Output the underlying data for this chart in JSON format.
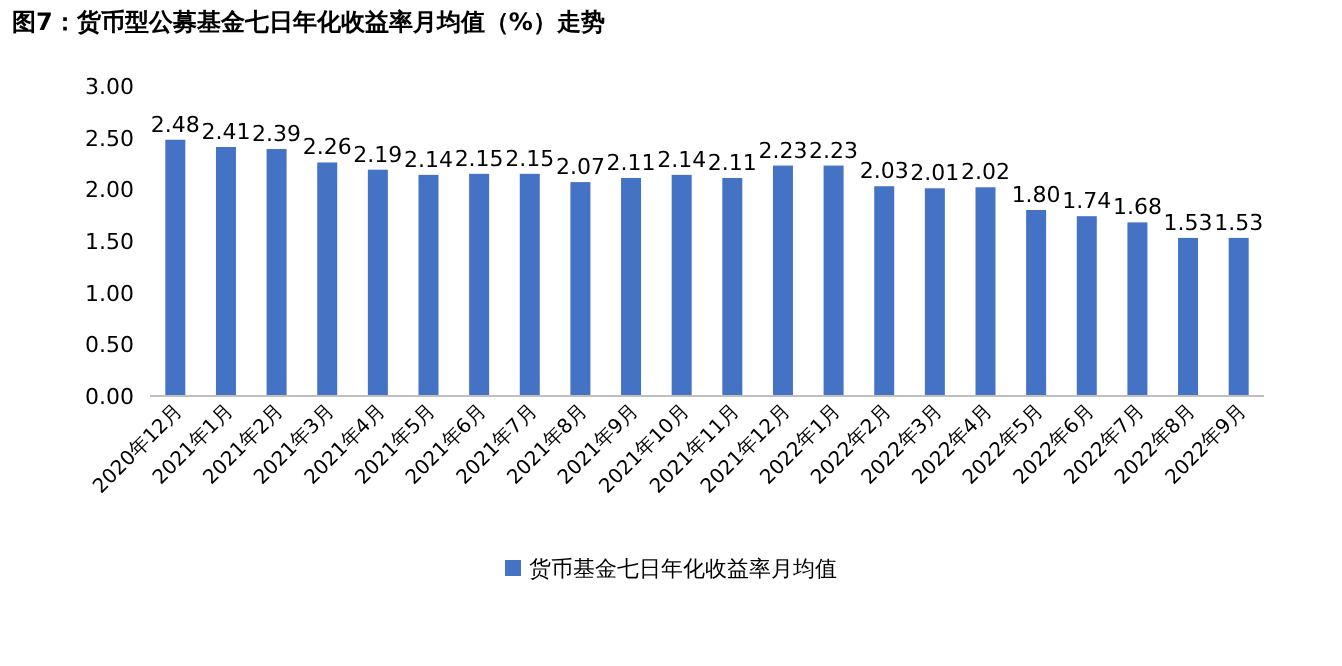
{
  "chart_data": {
    "type": "bar",
    "title": "图7：货币型公募基金七日年化收益率月均值（%）走势",
    "categories": [
      "2020年12月",
      "2021年1月",
      "2021年2月",
      "2021年3月",
      "2021年4月",
      "2021年5月",
      "2021年6月",
      "2021年7月",
      "2021年8月",
      "2021年9月",
      "2021年10月",
      "2021年11月",
      "2021年12月",
      "2022年1月",
      "2022年2月",
      "2022年3月",
      "2022年4月",
      "2022年5月",
      "2022年6月",
      "2022年7月",
      "2022年8月",
      "2022年9月"
    ],
    "series": [
      {
        "name": "货币基金七日年化收益率月均值",
        "color": "#4472c4",
        "values": [
          2.48,
          2.41,
          2.39,
          2.26,
          2.19,
          2.14,
          2.15,
          2.15,
          2.07,
          2.11,
          2.14,
          2.11,
          2.23,
          2.23,
          2.03,
          2.01,
          2.02,
          1.8,
          1.74,
          1.68,
          1.53,
          1.53
        ],
        "value_labels": [
          "2.48",
          "2.41",
          "2.39",
          "2.26",
          "2.19",
          "2.14",
          "2.15",
          "2.15",
          "2.07",
          "2.11",
          "2.14",
          "2.11",
          "2.23",
          "2.23",
          "2.03",
          "2.01",
          "2.02",
          "1.80",
          "1.74",
          "1.68",
          "1.53",
          "1.53"
        ]
      }
    ],
    "ylim": [
      0,
      3
    ],
    "yticks": [
      {
        "value": 0,
        "label": "0.00"
      },
      {
        "value": 0.5,
        "label": "0.50"
      },
      {
        "value": 1,
        "label": "1.00"
      },
      {
        "value": 1.5,
        "label": "1.50"
      },
      {
        "value": 2,
        "label": "2.00"
      },
      {
        "value": 2.5,
        "label": "2.50"
      },
      {
        "value": 3,
        "label": "3.00"
      }
    ],
    "legend": "bottom"
  }
}
